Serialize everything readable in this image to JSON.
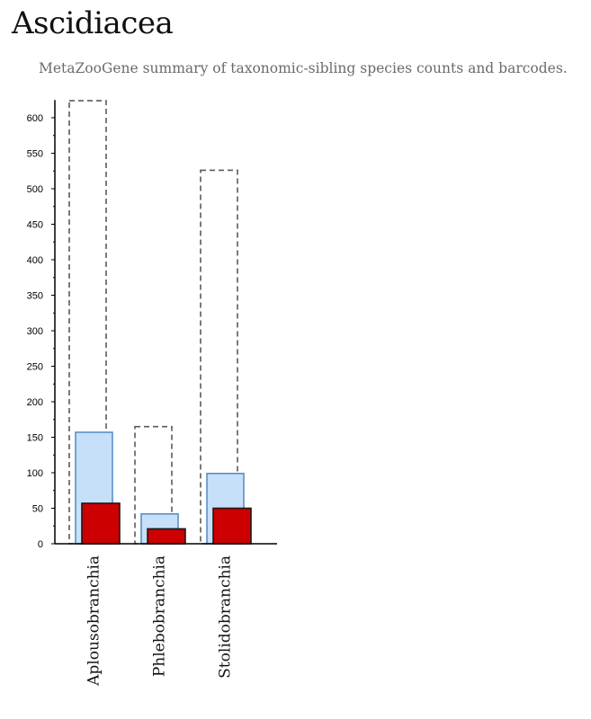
{
  "header": {
    "title": "Ascidiacea",
    "subtitle": "MetaZooGene summary of taxonomic-sibling species counts and barcodes."
  },
  "colors": {
    "total_species_stroke": "#5a5a5a",
    "middle_fill": "#c6e0f9",
    "middle_stroke": "#5b8fc4",
    "barcode_fill": "#cc0000",
    "barcode_stroke": "#1a1a1a",
    "axis": "#000000"
  },
  "chart_data": {
    "type": "bar",
    "categories": [
      "Aplousobranchia",
      "Phlebobranchia",
      "Stolidobranchia"
    ],
    "series": [
      {
        "style": "dashed-outline",
        "values": [
          624,
          165,
          526
        ]
      },
      {
        "style": "light-blue",
        "values": [
          157,
          42,
          99
        ]
      },
      {
        "style": "red",
        "values": [
          57,
          21,
          50
        ]
      }
    ],
    "yticks": [
      0,
      50,
      100,
      150,
      200,
      250,
      300,
      350,
      400,
      450,
      500,
      550,
      600
    ],
    "ylim": [
      0,
      625
    ],
    "grid": false,
    "legend": "none"
  }
}
